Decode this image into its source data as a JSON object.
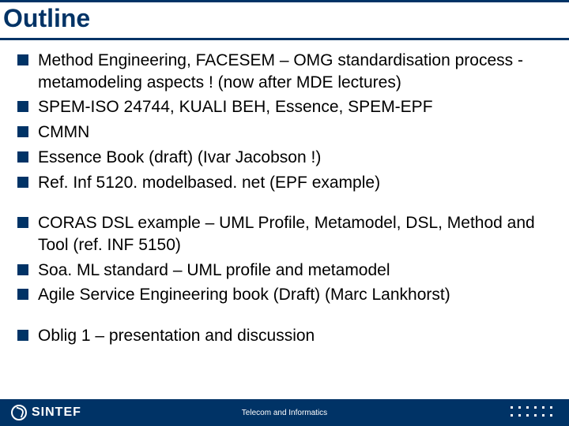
{
  "title": "Outline",
  "groups": [
    {
      "items": [
        "Method Engineering, FACESEM – OMG standardisation process  - metamodeling aspects !  (now after MDE lectures)",
        "SPEM-ISO 24744, KUALI BEH, Essence, SPEM-EPF",
        "CMMN",
        "Essence Book (draft)  (Ivar Jacobson !)",
        "Ref.  Inf 5120. modelbased. net  (EPF example)"
      ]
    },
    {
      "items": [
        "CORAS DSL example  – UML Profile, Metamodel,  DSL, Method and Tool (ref. INF 5150)",
        "Soa. ML standard – UML profile and metamodel",
        "Agile Service Engineering book (Draft) (Marc Lankhorst)"
      ]
    },
    {
      "items": [
        "Oblig 1 – presentation and discussion"
      ]
    }
  ],
  "footer": {
    "logo_text": "SINTEF",
    "center_text": "Telecom and Informatics"
  },
  "colors": {
    "brand": "#003366",
    "text": "#000000",
    "bg": "#ffffff",
    "footer_text": "#ffffff"
  },
  "typography": {
    "title_fontsize": 32,
    "body_fontsize": 21,
    "footer_fontsize": 10,
    "logo_fontsize": 16
  }
}
